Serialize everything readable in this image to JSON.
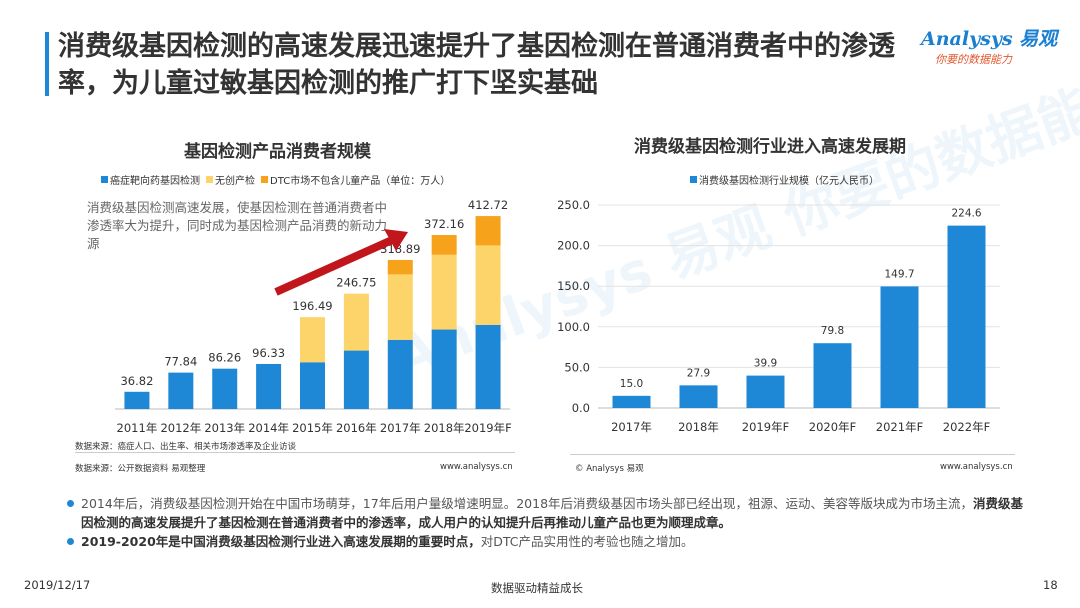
{
  "header": {
    "title": "消费级基因检测的高速发展迅速提升了基因检测在普通消费者中的渗透率，为儿童过敏基因检测的推广打下坚实基础",
    "logo_main": "Analysys 易观",
    "logo_sub": "你要的数据能力"
  },
  "colors": {
    "accent": "#1e88d6",
    "bar_blue": "#1e88d6",
    "bar_yellow": "#fcd46a",
    "bar_orange": "#f7a21b",
    "arrow": "#c0161c"
  },
  "watermark": "Analysys 易观 你要的数据能力",
  "note": "消费级基因检测高速发展，使基因检测在普通消费者中渗透率大为提升，同时成为基因检测产品消费的新动力源",
  "left_source_1": "数据来源：癌症人口、出生率、相关市场渗透率及企业访谈",
  "left_source_2": "数据来源：公开数据资料 易观整理",
  "left_url": "www.analysys.cn",
  "right_source": "© Analysys 易观",
  "right_url": "www.analysys.cn",
  "bullets": {
    "b1_text": "2014年后，消费级基因检测开始在中国市场萌芽，17年后用户量级增速明显。2018年后消费级基因市场头部已经出现，祖源、运动、美容等版块成为市场主流，",
    "b1_bold": "消费级基因检测的高速发展提升了基因检测在普通消费者中的渗透率，成人用户的认知提升后再推动儿童产品也更为顺理成章。",
    "b2_bold": "2019-2020年是中国消费级基因检测行业进入高速发展期的重要时点，",
    "b2_text": "对DTC产品实用性的考验也随之增加。"
  },
  "footer": {
    "date": "2019/12/17",
    "center": "数据驱动精益成长",
    "page": "18"
  },
  "chart_data": [
    {
      "type": "bar",
      "stacked": true,
      "title": "基因检测产品消费者规模",
      "unit_note": "（单位：万人）",
      "categories": [
        "2011年",
        "2012年",
        "2013年",
        "2014年",
        "2015年",
        "2016年",
        "2017年",
        "2018年",
        "2019年F"
      ],
      "totals": [
        36.82,
        77.84,
        86.26,
        96.33,
        196.49,
        246.75,
        318.89,
        372.16,
        412.72
      ],
      "series": [
        {
          "name": "癌症靶向药基因检测",
          "color": "#1e88d6",
          "values": [
            36.82,
            77.84,
            86.26,
            96.33,
            100,
            125,
            148,
            170,
            180
          ]
        },
        {
          "name": "无创产检",
          "color": "#fcd46a",
          "values": [
            0,
            0,
            0,
            0,
            96.49,
            121.75,
            140,
            160,
            170
          ]
        },
        {
          "name": "DTC市场不包含儿童产品（单位：万人）",
          "color": "#f7a21b",
          "values": [
            0,
            0,
            0,
            0,
            0,
            0,
            30.89,
            42.16,
            62.72
          ]
        }
      ],
      "ylim": [
        0,
        430
      ],
      "legend": "top"
    },
    {
      "type": "bar",
      "title": "消费级基因检测行业进入高速发展期",
      "categories": [
        "2017年",
        "2018年",
        "2019年F",
        "2020年F",
        "2021年F",
        "2022年F"
      ],
      "series": [
        {
          "name": "消费级基因检测行业规模（亿元人民币）",
          "color": "#1e88d6",
          "values": [
            15.0,
            27.9,
            39.9,
            79.8,
            149.7,
            224.6
          ]
        }
      ],
      "yticks": [
        "0.0",
        "50.0",
        "100.0",
        "150.0",
        "200.0",
        "250.0"
      ],
      "ylim": [
        0,
        250
      ],
      "grid": true,
      "legend": "top"
    }
  ]
}
